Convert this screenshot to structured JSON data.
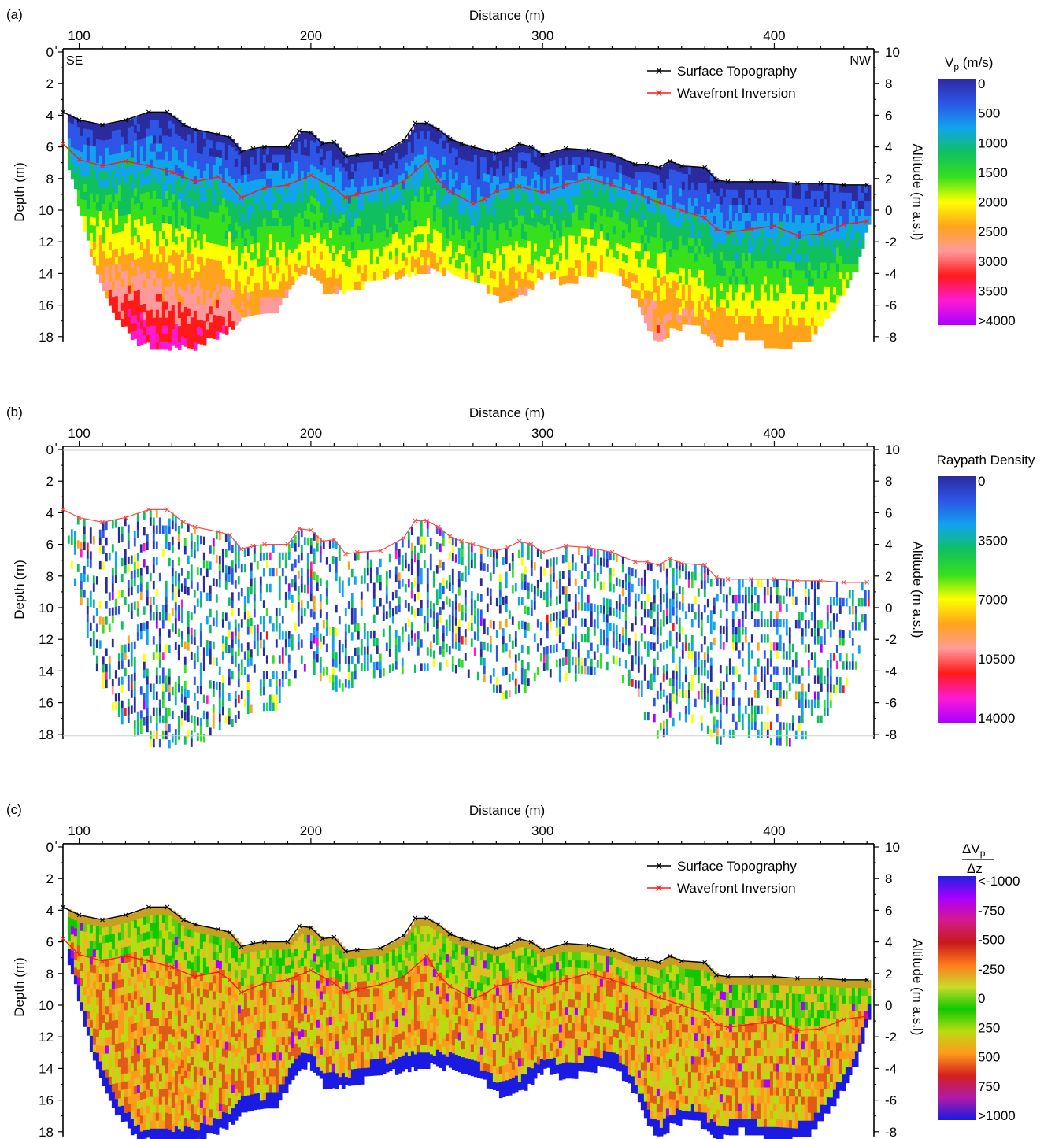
{
  "chart_data": [
    {
      "panel_label": "(a)",
      "type": "heatmap",
      "xlabel": "Distance (m)",
      "ylabel_left": "Depth (m)",
      "ylabel_right": "Altitude (m a.s.l)",
      "x_ticks": [
        100,
        200,
        300,
        400
      ],
      "depth_ticks": [
        0,
        2,
        4,
        6,
        8,
        10,
        12,
        14,
        16,
        18
      ],
      "altitude_ticks": [
        10,
        8,
        6,
        4,
        2,
        0,
        -2,
        -4,
        -6,
        -8
      ],
      "xlim": [
        93,
        443
      ],
      "ylim_depth": [
        0,
        18.5
      ],
      "direction_left": "SE",
      "direction_right": "NW",
      "legend": [
        "Surface Topography",
        "Wavefront Inversion"
      ],
      "legend_position": "top-right",
      "colorbar": {
        "title": "V",
        "title_sub": "p",
        "title_unit": " (m/s)",
        "labels": [
          "0",
          "500",
          "1000",
          "1500",
          "2000",
          "2500",
          "3000",
          "3500",
          ">4000"
        ],
        "colors": [
          "#2b2ba0",
          "#2d55e6",
          "#12a3ee",
          "#10c060",
          "#36e01c",
          "#ffff00",
          "#ffa31c",
          "#ff9a9a",
          "#ff1a1a",
          "#ff1ad2",
          "#aa00ff"
        ]
      },
      "series": [
        {
          "name": "Surface Topography",
          "color": "#000000",
          "x": [
            93,
            100,
            110,
            120,
            130,
            138,
            145,
            150,
            160,
            165,
            170,
            175,
            180,
            190,
            195,
            200,
            205,
            210,
            215,
            220,
            230,
            240,
            245,
            250,
            255,
            260,
            265,
            270,
            280,
            285,
            290,
            295,
            300,
            310,
            320,
            330,
            340,
            345,
            350,
            355,
            360,
            370,
            375,
            380,
            390,
            400,
            410,
            420,
            430,
            440
          ],
          "y": [
            3.8,
            4.3,
            4.6,
            4.3,
            3.8,
            3.8,
            4.6,
            4.9,
            5.2,
            5.4,
            6.3,
            6.1,
            6.0,
            6.0,
            5.0,
            5.1,
            5.8,
            5.7,
            6.6,
            6.5,
            6.4,
            5.6,
            4.5,
            4.5,
            4.9,
            5.5,
            5.8,
            6.0,
            6.4,
            6.2,
            5.8,
            6.0,
            6.5,
            6.1,
            6.2,
            6.5,
            7.1,
            7.1,
            7.3,
            6.9,
            7.2,
            7.3,
            8.1,
            8.2,
            8.2,
            8.2,
            8.3,
            8.3,
            8.4,
            8.4
          ]
        },
        {
          "name": "Wavefront Inversion",
          "color": "#ff1a1a",
          "x": [
            93,
            100,
            110,
            120,
            130,
            140,
            150,
            160,
            165,
            170,
            180,
            190,
            200,
            210,
            215,
            220,
            230,
            240,
            250,
            255,
            260,
            270,
            275,
            280,
            290,
            300,
            310,
            320,
            330,
            340,
            350,
            360,
            370,
            375,
            380,
            390,
            400,
            410,
            420,
            430,
            440
          ],
          "y": [
            5.8,
            6.8,
            7.2,
            6.9,
            7.2,
            7.6,
            8.2,
            7.9,
            8.4,
            9.2,
            8.6,
            8.4,
            7.8,
            8.6,
            9.2,
            9.0,
            8.7,
            8.2,
            6.9,
            8.1,
            8.8,
            9.6,
            9.3,
            8.8,
            8.5,
            8.9,
            8.4,
            8.0,
            8.4,
            8.9,
            9.5,
            10.0,
            10.5,
            11.2,
            11.4,
            11.2,
            11.0,
            11.6,
            11.5,
            10.9,
            10.7
          ]
        }
      ]
    },
    {
      "panel_label": "(b)",
      "type": "heatmap",
      "xlabel": "Distance (m)",
      "ylabel_left": "Depth (m)",
      "ylabel_right": "Altitude (m a.s.l)",
      "x_ticks": [
        100,
        200,
        300,
        400
      ],
      "depth_ticks": [
        0,
        2,
        4,
        6,
        8,
        10,
        12,
        14,
        16,
        18
      ],
      "altitude_ticks": [
        10,
        8,
        6,
        4,
        2,
        0,
        -2,
        -4,
        -6,
        -8
      ],
      "xlim": [
        93,
        443
      ],
      "ylim_depth": [
        0,
        18.5
      ],
      "colorbar": {
        "title": "Raypath Density",
        "labels": [
          "0",
          "3500",
          "7000",
          "10500",
          "14000"
        ],
        "colors": [
          "#2b2ba0",
          "#2d55e6",
          "#12a3ee",
          "#10c060",
          "#36e01c",
          "#ffff00",
          "#ffa31c",
          "#ff9a9a",
          "#ff1a1a",
          "#ff1ad2",
          "#aa00ff"
        ]
      },
      "series": [
        {
          "name": "",
          "color": "#ff4a4a",
          "x": [
            93,
            100,
            110,
            120,
            130,
            138,
            145,
            150,
            160,
            165,
            170,
            175,
            180,
            190,
            195,
            200,
            205,
            210,
            215,
            220,
            230,
            240,
            245,
            250,
            255,
            260,
            265,
            270,
            280,
            285,
            290,
            295,
            300,
            310,
            320,
            330,
            340,
            345,
            350,
            355,
            360,
            370,
            375,
            380,
            390,
            400,
            410,
            420,
            430,
            440
          ],
          "y": [
            3.8,
            4.3,
            4.6,
            4.3,
            3.8,
            3.8,
            4.6,
            4.9,
            5.2,
            5.4,
            6.3,
            6.1,
            6.0,
            6.0,
            5.0,
            5.1,
            5.8,
            5.7,
            6.6,
            6.5,
            6.4,
            5.6,
            4.5,
            4.5,
            4.9,
            5.5,
            5.8,
            6.0,
            6.4,
            6.2,
            5.8,
            6.0,
            6.5,
            6.1,
            6.2,
            6.5,
            7.1,
            7.1,
            7.3,
            6.9,
            7.2,
            7.3,
            8.1,
            8.2,
            8.2,
            8.2,
            8.3,
            8.3,
            8.4,
            8.4
          ]
        }
      ]
    },
    {
      "panel_label": "(c)",
      "type": "heatmap",
      "xlabel": "Distance (m)",
      "ylabel_left": "Depth (m)",
      "ylabel_right": "Altitude (m a.s.l)",
      "x_ticks": [
        100,
        200,
        300,
        400
      ],
      "depth_ticks": [
        0,
        2,
        4,
        6,
        8,
        10,
        12,
        14,
        16,
        18
      ],
      "altitude_ticks": [
        10,
        8,
        6,
        4,
        2,
        0,
        -2,
        -4,
        -6,
        -8
      ],
      "xlim": [
        93,
        443
      ],
      "ylim_depth": [
        0,
        18.5
      ],
      "legend": [
        "Surface Topography",
        "Wavefront Inversion"
      ],
      "legend_position": "top-right",
      "colorbar": {
        "title": "ΔV",
        "title_sub": "p",
        "title_den": "Δz",
        "labels": [
          "<-1000",
          "-750",
          "-500",
          "-250",
          "0",
          "250",
          "500",
          "750",
          ">1000"
        ],
        "colors": [
          "#2020e0",
          "#aa00ff",
          "#d41a8c",
          "#c81a1a",
          "#ff7a1a",
          "#c8dc28",
          "#10c800",
          "#b8dc10",
          "#ff9a1a",
          "#d42020",
          "#b01aaa",
          "#1a1ae0"
        ]
      },
      "series": [
        {
          "name": "Surface Topography",
          "color": "#000000",
          "x": [
            93,
            100,
            110,
            120,
            130,
            138,
            145,
            150,
            160,
            165,
            170,
            175,
            180,
            190,
            195,
            200,
            205,
            210,
            215,
            220,
            230,
            240,
            245,
            250,
            255,
            260,
            265,
            270,
            280,
            285,
            290,
            295,
            300,
            310,
            320,
            330,
            340,
            345,
            350,
            355,
            360,
            370,
            375,
            380,
            390,
            400,
            410,
            420,
            430,
            440
          ],
          "y": [
            3.8,
            4.3,
            4.6,
            4.3,
            3.8,
            3.8,
            4.6,
            4.9,
            5.2,
            5.4,
            6.3,
            6.1,
            6.0,
            6.0,
            5.0,
            5.1,
            5.8,
            5.7,
            6.6,
            6.5,
            6.4,
            5.6,
            4.5,
            4.5,
            4.9,
            5.5,
            5.8,
            6.0,
            6.4,
            6.2,
            5.8,
            6.0,
            6.5,
            6.1,
            6.2,
            6.5,
            7.1,
            7.1,
            7.3,
            6.9,
            7.2,
            7.3,
            8.1,
            8.2,
            8.2,
            8.2,
            8.3,
            8.3,
            8.4,
            8.4
          ]
        },
        {
          "name": "Wavefront Inversion",
          "color": "#ff1a1a",
          "x": [
            93,
            100,
            110,
            120,
            130,
            140,
            150,
            160,
            165,
            170,
            180,
            190,
            200,
            210,
            215,
            220,
            230,
            240,
            250,
            255,
            260,
            270,
            275,
            280,
            290,
            300,
            310,
            320,
            330,
            340,
            350,
            360,
            370,
            375,
            380,
            390,
            400,
            410,
            420,
            430,
            440
          ],
          "y": [
            5.8,
            6.8,
            7.2,
            6.9,
            7.2,
            7.6,
            8.2,
            7.9,
            8.4,
            9.2,
            8.6,
            8.4,
            7.8,
            8.6,
            9.2,
            9.0,
            8.7,
            8.2,
            6.9,
            8.1,
            8.8,
            9.6,
            9.3,
            8.8,
            8.5,
            8.9,
            8.4,
            8.0,
            8.4,
            8.9,
            9.5,
            10.0,
            10.5,
            11.2,
            11.4,
            11.2,
            11.0,
            11.6,
            11.5,
            10.9,
            10.7
          ]
        }
      ]
    }
  ]
}
